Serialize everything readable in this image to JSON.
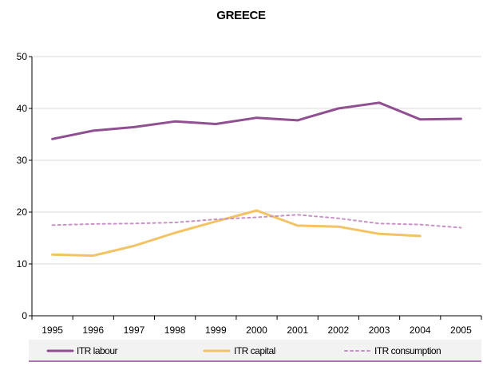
{
  "chart_data": {
    "type": "line",
    "title": "GREECE",
    "xlabel": "",
    "ylabel": "",
    "x": [
      "1995",
      "1996",
      "1997",
      "1998",
      "1999",
      "2000",
      "2001",
      "2002",
      "2003",
      "2004",
      "2005"
    ],
    "ylim": [
      0,
      50
    ],
    "yticks": [
      0,
      10,
      20,
      30,
      40,
      50
    ],
    "grid": "horizontal",
    "legend_position": "bottom",
    "series": [
      {
        "name": "ITR labour",
        "color": "#8f4f91",
        "style": "solid",
        "values": [
          34.1,
          35.7,
          36.4,
          37.5,
          37.0,
          38.2,
          37.7,
          40.0,
          41.1,
          37.9,
          38.0
        ]
      },
      {
        "name": "ITR capital",
        "color": "#f3c265",
        "style": "solid",
        "values": [
          11.8,
          11.6,
          13.5,
          16.0,
          18.2,
          20.3,
          17.4,
          17.2,
          15.8,
          15.4,
          null
        ]
      },
      {
        "name": "ITR consumption",
        "color": "#c792c5",
        "style": "dashed",
        "values": [
          17.5,
          17.7,
          17.8,
          18.0,
          18.6,
          19.0,
          19.5,
          18.8,
          17.8,
          17.6,
          17.0
        ]
      }
    ]
  },
  "legend": {
    "background": "#f2f2f2",
    "border_color": "#8f4f91"
  }
}
